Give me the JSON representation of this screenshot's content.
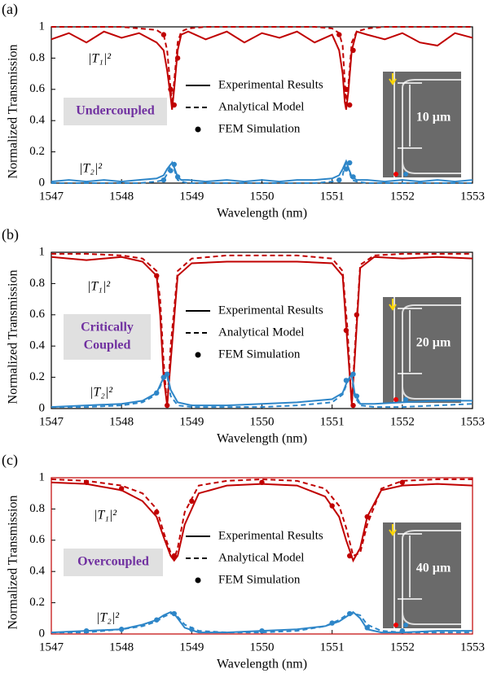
{
  "chart_data": [
    {
      "type": "line",
      "panel_label": "(a)",
      "xlabel": "Wavelength (nm)",
      "ylabel": "Normalized Transmission",
      "xlim": [
        1547,
        1553
      ],
      "xticks": [
        1547,
        1548,
        1549,
        1550,
        1551,
        1552,
        1553
      ],
      "ylim": [
        0,
        1
      ],
      "yticks": [
        0,
        0.2,
        0.4,
        0.6,
        0.8,
        1
      ],
      "legend": [
        {
          "name": "Experimental Results",
          "style": "solid"
        },
        {
          "name": "Analytical Model",
          "style": "dashed"
        },
        {
          "name": "FEM Simulation",
          "style": "dots"
        }
      ],
      "curve_labels": [
        {
          "text": "|T₁|²",
          "color": "#c00000"
        },
        {
          "text": "|T₂|²",
          "color": "#2e86c8"
        }
      ],
      "state_label": [
        "Undercoupled"
      ],
      "scale_label": "10 µm",
      "x": [
        1547,
        1547.25,
        1547.5,
        1547.75,
        1548,
        1548.25,
        1548.5,
        1548.6,
        1548.65,
        1548.7,
        1548.72,
        1548.75,
        1548.8,
        1548.85,
        1548.95,
        1549.2,
        1549.5,
        1549.75,
        1550,
        1550.25,
        1550.5,
        1550.75,
        1551,
        1551.1,
        1551.15,
        1551.18,
        1551.2,
        1551.23,
        1551.28,
        1551.35,
        1551.5,
        1551.75,
        1552,
        1552.25,
        1552.5,
        1552.75,
        1553
      ],
      "series": [
        {
          "style": "solid",
          "color": "#c00000",
          "values": [
            0.92,
            0.96,
            0.9,
            0.97,
            0.93,
            0.96,
            0.9,
            0.85,
            0.72,
            0.55,
            0.47,
            0.6,
            0.85,
            0.95,
            0.97,
            0.92,
            0.97,
            0.9,
            0.96,
            0.93,
            0.97,
            0.9,
            0.95,
            0.85,
            0.7,
            0.52,
            0.47,
            0.58,
            0.85,
            0.97,
            0.95,
            0.92,
            0.96,
            0.9,
            0.88,
            0.96,
            0.93
          ]
        },
        {
          "style": "dashed",
          "color": "#c00000",
          "values": [
            1,
            1,
            1,
            1,
            1,
            0.99,
            0.98,
            0.95,
            0.85,
            0.6,
            0.5,
            0.65,
            0.9,
            0.97,
            0.99,
            1,
            1,
            1,
            1,
            1,
            1,
            1,
            0.99,
            0.96,
            0.88,
            0.65,
            0.5,
            0.62,
            0.9,
            0.97,
            0.99,
            1,
            1,
            1,
            1,
            1,
            1
          ]
        },
        {
          "style": "solid",
          "color": "#2e86c8",
          "values": [
            0.01,
            0.02,
            0.01,
            0.02,
            0.01,
            0.02,
            0.03,
            0.05,
            0.09,
            0.12,
            0.13,
            0.1,
            0.04,
            0.02,
            0.02,
            0.01,
            0.02,
            0.01,
            0.02,
            0.01,
            0.02,
            0.02,
            0.03,
            0.05,
            0.09,
            0.12,
            0.14,
            0.1,
            0.04,
            0.02,
            0.02,
            0.01,
            0.02,
            0.01,
            0.02,
            0.01,
            0.02
          ]
        },
        {
          "style": "dashed",
          "color": "#2e86c8",
          "values": [
            0,
            0,
            0,
            0,
            0,
            0,
            0.01,
            0.02,
            0.06,
            0.11,
            0.13,
            0.09,
            0.02,
            0.01,
            0,
            0,
            0,
            0,
            0,
            0,
            0,
            0,
            0.01,
            0.02,
            0.05,
            0.11,
            0.13,
            0.1,
            0.02,
            0.01,
            0,
            0,
            0,
            0,
            0,
            0,
            0
          ]
        },
        {
          "style": "dots",
          "color": "#c00000",
          "x": [
            1548.6,
            1548.7,
            1548.75,
            1548.8,
            1551.1,
            1551.2,
            1551.25,
            1551.3
          ],
          "values": [
            0.95,
            0.6,
            0.5,
            0.8,
            0.95,
            0.6,
            0.5,
            0.85
          ]
        },
        {
          "style": "dots",
          "color": "#2e86c8",
          "x": [
            1548.6,
            1548.7,
            1548.75,
            1548.8,
            1551.1,
            1551.2,
            1551.25,
            1551.3
          ],
          "values": [
            0.02,
            0.08,
            0.12,
            0.04,
            0.02,
            0.09,
            0.13,
            0.04
          ]
        }
      ]
    },
    {
      "type": "line",
      "panel_label": "(b)",
      "xlabel": "Wavelength (nm)",
      "ylabel": "Normalized Transmission",
      "xlim": [
        1547,
        1553
      ],
      "xticks": [
        1547,
        1548,
        1549,
        1550,
        1551,
        1552,
        1553
      ],
      "ylim": [
        0,
        1
      ],
      "yticks": [
        0,
        0.2,
        0.4,
        0.6,
        0.8,
        1
      ],
      "legend": [
        {
          "name": "Experimental Results",
          "style": "solid"
        },
        {
          "name": "Analytical Model",
          "style": "dashed"
        },
        {
          "name": "FEM Simulation",
          "style": "dots"
        }
      ],
      "curve_labels": [
        {
          "text": "|T₁|²",
          "color": "#c00000"
        },
        {
          "text": "|T₂|²",
          "color": "#2e86c8"
        }
      ],
      "state_label": [
        "Critically",
        "Coupled"
      ],
      "scale_label": "20 µm",
      "x": [
        1547,
        1547.5,
        1548,
        1548.3,
        1548.5,
        1548.55,
        1548.6,
        1548.65,
        1548.7,
        1548.8,
        1549,
        1549.5,
        1550,
        1550.5,
        1551,
        1551.15,
        1551.22,
        1551.28,
        1551.32,
        1551.4,
        1551.6,
        1552,
        1552.5,
        1553
      ],
      "series": [
        {
          "style": "solid",
          "color": "#c00000",
          "values": [
            0.97,
            0.95,
            0.97,
            0.94,
            0.85,
            0.6,
            0.2,
            0.02,
            0.3,
            0.85,
            0.93,
            0.94,
            0.94,
            0.94,
            0.93,
            0.85,
            0.4,
            0.03,
            0.3,
            0.9,
            0.97,
            0.96,
            0.97,
            0.96
          ]
        },
        {
          "style": "dashed",
          "color": "#c00000",
          "values": [
            0.99,
            0.99,
            0.98,
            0.96,
            0.88,
            0.7,
            0.3,
            0.01,
            0.4,
            0.88,
            0.96,
            0.98,
            0.98,
            0.98,
            0.96,
            0.88,
            0.5,
            0.01,
            0.35,
            0.92,
            0.98,
            0.99,
            0.99,
            0.99
          ]
        },
        {
          "style": "solid",
          "color": "#2e86c8",
          "values": [
            0.01,
            0.02,
            0.03,
            0.05,
            0.1,
            0.15,
            0.2,
            0.22,
            0.12,
            0.04,
            0.02,
            0.02,
            0.03,
            0.04,
            0.06,
            0.1,
            0.18,
            0.22,
            0.1,
            0.03,
            0.03,
            0.04,
            0.05,
            0.05
          ]
        },
        {
          "style": "dashed",
          "color": "#2e86c8",
          "values": [
            0.01,
            0.01,
            0.02,
            0.04,
            0.09,
            0.14,
            0.19,
            0.21,
            0.08,
            0.02,
            0.01,
            0.01,
            0.01,
            0.02,
            0.04,
            0.09,
            0.17,
            0.21,
            0.08,
            0.02,
            0.01,
            0.01,
            0.02,
            0.03
          ]
        },
        {
          "style": "dots",
          "color": "#c00000",
          "x": [
            1548.5,
            1548.6,
            1548.65,
            1551.2,
            1551.3,
            1551.35
          ],
          "values": [
            0.85,
            0.2,
            0.02,
            0.5,
            0.02,
            0.6
          ]
        },
        {
          "style": "dots",
          "color": "#2e86c8",
          "x": [
            1548.5,
            1548.6,
            1548.65,
            1551.2,
            1551.3,
            1551.35
          ],
          "values": [
            0.1,
            0.2,
            0.22,
            0.18,
            0.22,
            0.08
          ]
        }
      ]
    },
    {
      "type": "line",
      "panel_label": "(c)",
      "xlabel": "Wavelength (nm)",
      "ylabel": "Normalized Transmission",
      "xlim": [
        1547,
        1553
      ],
      "xticks": [
        1547,
        1548,
        1549,
        1550,
        1551,
        1552,
        1553
      ],
      "ylim": [
        0,
        1
      ],
      "yticks": [
        0,
        0.2,
        0.4,
        0.6,
        0.8,
        1
      ],
      "legend": [
        {
          "name": "Experimental Results",
          "style": "solid"
        },
        {
          "name": "Analytical Model",
          "style": "dashed"
        },
        {
          "name": "FEM Simulation",
          "style": "dots"
        }
      ],
      "curve_labels": [
        {
          "text": "|T₁|²",
          "color": "#c00000"
        },
        {
          "text": "|T₂|²",
          "color": "#2e86c8"
        }
      ],
      "state_label": [
        "Overcoupled"
      ],
      "scale_label": "40 µm",
      "x": [
        1547,
        1547.5,
        1548,
        1548.3,
        1548.5,
        1548.6,
        1548.7,
        1548.75,
        1548.8,
        1548.9,
        1549.1,
        1549.5,
        1550,
        1550.5,
        1550.9,
        1551.1,
        1551.2,
        1551.3,
        1551.4,
        1551.5,
        1551.7,
        1552,
        1552.5,
        1553
      ],
      "series": [
        {
          "style": "solid",
          "color": "#c00000",
          "values": [
            0.97,
            0.96,
            0.92,
            0.85,
            0.75,
            0.62,
            0.5,
            0.47,
            0.5,
            0.7,
            0.9,
            0.95,
            0.96,
            0.95,
            0.88,
            0.75,
            0.6,
            0.47,
            0.55,
            0.75,
            0.92,
            0.95,
            0.96,
            0.95
          ]
        },
        {
          "style": "dashed",
          "color": "#c00000",
          "values": [
            0.99,
            0.98,
            0.95,
            0.9,
            0.8,
            0.65,
            0.52,
            0.48,
            0.55,
            0.78,
            0.95,
            0.98,
            0.99,
            0.98,
            0.93,
            0.82,
            0.68,
            0.5,
            0.52,
            0.7,
            0.93,
            0.98,
            0.99,
            0.99
          ]
        },
        {
          "style": "solid",
          "color": "#2e86c8",
          "values": [
            0.01,
            0.02,
            0.03,
            0.06,
            0.09,
            0.12,
            0.14,
            0.13,
            0.1,
            0.04,
            0.01,
            0.01,
            0.02,
            0.03,
            0.05,
            0.08,
            0.11,
            0.14,
            0.1,
            0.03,
            0.01,
            0.01,
            0.02,
            0.02
          ]
        },
        {
          "style": "dashed",
          "color": "#2e86c8",
          "values": [
            0.01,
            0.01,
            0.03,
            0.05,
            0.08,
            0.11,
            0.13,
            0.13,
            0.11,
            0.06,
            0.02,
            0.01,
            0.01,
            0.02,
            0.05,
            0.09,
            0.12,
            0.13,
            0.12,
            0.06,
            0.02,
            0.01,
            0.01,
            0.01
          ]
        },
        {
          "style": "dots",
          "color": "#c00000",
          "x": [
            1547.5,
            1548,
            1548.5,
            1548.75,
            1549,
            1550,
            1551,
            1551.25,
            1551.5,
            1552
          ],
          "values": [
            0.97,
            0.93,
            0.78,
            0.5,
            0.85,
            0.97,
            0.82,
            0.5,
            0.75,
            0.97
          ]
        },
        {
          "style": "dots",
          "color": "#2e86c8",
          "x": [
            1547.5,
            1548,
            1548.5,
            1548.75,
            1549,
            1550,
            1551,
            1551.25,
            1551.5,
            1552
          ],
          "values": [
            0.02,
            0.03,
            0.09,
            0.13,
            0.03,
            0.02,
            0.07,
            0.13,
            0.04,
            0.02
          ]
        }
      ]
    }
  ]
}
